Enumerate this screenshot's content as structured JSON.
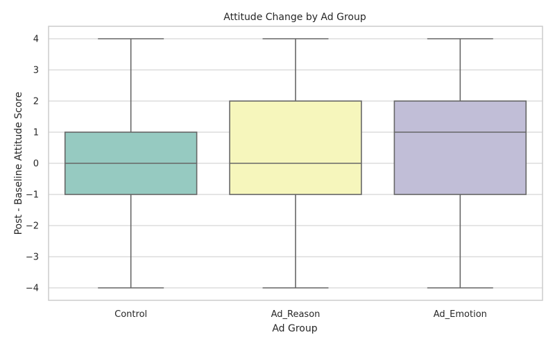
{
  "chart_data": {
    "type": "box",
    "title": "Attitude Change by Ad Group",
    "xlabel": "Ad Group",
    "ylabel": "Post - Baseline Attitude Score",
    "ylim": [
      -4.4,
      4.4
    ],
    "yticks": [
      {
        "value": -4,
        "label": "−4"
      },
      {
        "value": -3,
        "label": "−3"
      },
      {
        "value": -2,
        "label": "−2"
      },
      {
        "value": -1,
        "label": "−1"
      },
      {
        "value": 0,
        "label": "0"
      },
      {
        "value": 1,
        "label": "1"
      },
      {
        "value": 2,
        "label": "2"
      },
      {
        "value": 3,
        "label": "3"
      },
      {
        "value": 4,
        "label": "4"
      }
    ],
    "grid": true,
    "categories": [
      "Control",
      "Ad_Reason",
      "Ad_Emotion"
    ],
    "boxes": [
      {
        "category": "Control",
        "whisker_low": -4,
        "q1": -1,
        "median": 0,
        "q3": 1,
        "whisker_high": 4,
        "color": "#96cac1"
      },
      {
        "category": "Ad_Reason",
        "whisker_low": -4,
        "q1": -1,
        "median": 0,
        "q3": 2,
        "whisker_high": 4,
        "color": "#f6f6bc"
      },
      {
        "category": "Ad_Emotion",
        "whisker_low": -4,
        "q1": -1,
        "median": 1,
        "q3": 2,
        "whisker_high": 4,
        "color": "#c1bed7"
      }
    ],
    "line_color": "#666666",
    "grid_color": "#d5d5d5",
    "frame_color": "#cccccc"
  }
}
